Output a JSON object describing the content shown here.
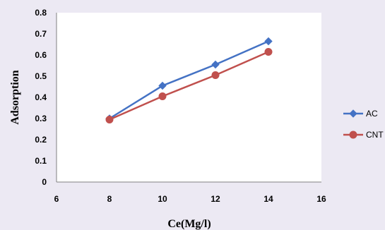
{
  "chart_data": {
    "type": "line",
    "xlabel": "Ce(Mg/l)",
    "ylabel": "Adsorption",
    "xlim": [
      6,
      16
    ],
    "ylim": [
      0,
      0.8
    ],
    "x_ticks": [
      "6",
      "8",
      "10",
      "12",
      "14",
      "16"
    ],
    "y_ticks": [
      "0",
      "0.1",
      "0.2",
      "0.3",
      "0.4",
      "0.5",
      "0.6",
      "0.7",
      "0.8"
    ],
    "grid": false,
    "legend_position": "right",
    "series": [
      {
        "name": "AC",
        "color": "#4472c4",
        "marker": "diamond",
        "points": [
          {
            "x": 8,
            "y": 0.3
          },
          {
            "x": 10,
            "y": 0.455
          },
          {
            "x": 12,
            "y": 0.555
          },
          {
            "x": 14,
            "y": 0.665
          }
        ]
      },
      {
        "name": "CNT",
        "color": "#c0504d",
        "marker": "circle",
        "points": [
          {
            "x": 8,
            "y": 0.295
          },
          {
            "x": 10,
            "y": 0.405
          },
          {
            "x": 12,
            "y": 0.505
          },
          {
            "x": 14,
            "y": 0.615
          }
        ]
      }
    ]
  }
}
